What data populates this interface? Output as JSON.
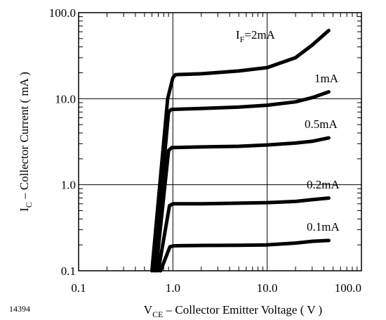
{
  "chart_data": {
    "type": "line",
    "x_scale": "log",
    "y_scale": "log",
    "xlim": [
      0.1,
      100
    ],
    "ylim": [
      0.1,
      100
    ],
    "grid": true,
    "x_ticks": [
      {
        "value": 0.1,
        "label": "0.1"
      },
      {
        "value": 1,
        "label": "1.0"
      },
      {
        "value": 10,
        "label": "10.0"
      },
      {
        "value": 100,
        "label": "100.0"
      }
    ],
    "y_ticks": [
      {
        "value": 0.1,
        "label": "0.1"
      },
      {
        "value": 1,
        "label": "1.0"
      },
      {
        "value": 10,
        "label": "10.0"
      },
      {
        "value": 100,
        "label": "100.0"
      }
    ],
    "xlabel": {
      "main": "V",
      "sub": "CE",
      "rest": " – Collector Emitter Voltage ( V )"
    },
    "ylabel": {
      "main": "I",
      "sub": "C",
      "rest": " – Collector Current ( mA )"
    },
    "figure_id": "14394",
    "series": [
      {
        "name": "IF=2mA",
        "label": {
          "main": "I",
          "sub": "F",
          "rest": "=2mA"
        },
        "points": [
          [
            0.6,
            0.1
          ],
          [
            0.88,
            10
          ],
          [
            1.0,
            17.5
          ],
          [
            1.06,
            19
          ],
          [
            2,
            19.5
          ],
          [
            5,
            21
          ],
          [
            10,
            23
          ],
          [
            20,
            30
          ],
          [
            30,
            42
          ],
          [
            45,
            62
          ]
        ]
      },
      {
        "name": "1mA",
        "label": {
          "main": "1mA",
          "sub": "",
          "rest": ""
        },
        "points": [
          [
            0.63,
            0.1
          ],
          [
            0.9,
            7
          ],
          [
            0.96,
            7.5
          ],
          [
            2,
            7.7
          ],
          [
            5,
            8
          ],
          [
            10,
            8.4
          ],
          [
            20,
            9.2
          ],
          [
            30,
            10.3
          ],
          [
            45,
            12
          ]
        ]
      },
      {
        "name": "0.5mA",
        "label": {
          "main": "0.5mA",
          "sub": "",
          "rest": ""
        },
        "points": [
          [
            0.66,
            0.1
          ],
          [
            0.9,
            2.5
          ],
          [
            0.97,
            2.7
          ],
          [
            2,
            2.75
          ],
          [
            5,
            2.8
          ],
          [
            10,
            2.9
          ],
          [
            20,
            3.05
          ],
          [
            30,
            3.2
          ],
          [
            45,
            3.5
          ]
        ]
      },
      {
        "name": "0.2mA",
        "label": {
          "main": "0.2mA",
          "sub": "",
          "rest": ""
        },
        "points": [
          [
            0.7,
            0.1
          ],
          [
            0.92,
            0.57
          ],
          [
            1.0,
            0.6
          ],
          [
            2,
            0.6
          ],
          [
            5,
            0.61
          ],
          [
            10,
            0.62
          ],
          [
            20,
            0.64
          ],
          [
            30,
            0.67
          ],
          [
            45,
            0.7
          ]
        ]
      },
      {
        "name": "0.1mA",
        "label": {
          "main": "0.1mA",
          "sub": "",
          "rest": ""
        },
        "points": [
          [
            0.74,
            0.1
          ],
          [
            0.93,
            0.19
          ],
          [
            1.02,
            0.195
          ],
          [
            2,
            0.197
          ],
          [
            5,
            0.198
          ],
          [
            10,
            0.2
          ],
          [
            20,
            0.21
          ],
          [
            30,
            0.22
          ],
          [
            45,
            0.225
          ]
        ]
      }
    ]
  }
}
